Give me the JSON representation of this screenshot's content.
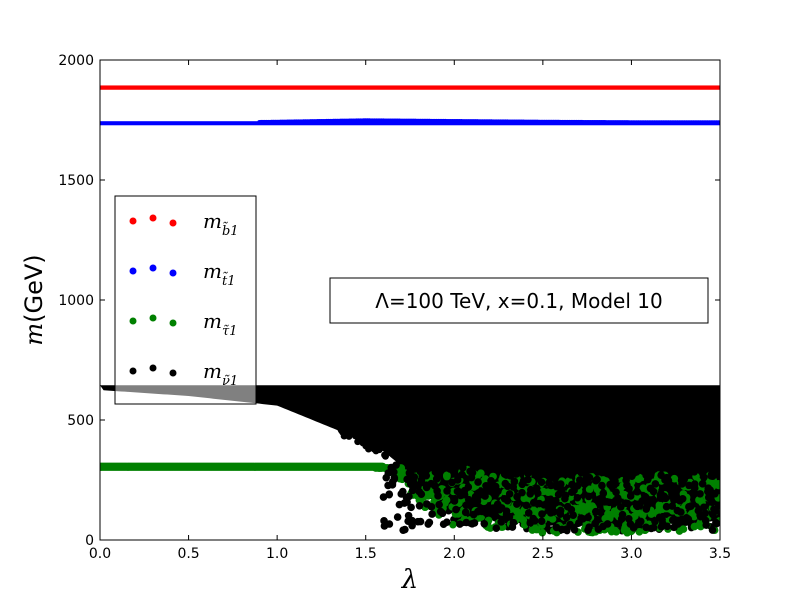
{
  "chart_data": {
    "type": "scatter",
    "title": "",
    "xlabel": "λ",
    "ylabel": "m(GeV)",
    "xlim": [
      0.0,
      3.5
    ],
    "ylim": [
      0,
      2000
    ],
    "x_ticks": [
      "0.0",
      "0.5",
      "1.0",
      "1.5",
      "2.0",
      "2.5",
      "3.0",
      "3.5"
    ],
    "y_ticks": [
      "0",
      "500",
      "1000",
      "1500",
      "2000"
    ],
    "grid": false,
    "legend_position": "upper-left",
    "annotation": "Λ=100 TeV, x=0.1, Model 10",
    "series": [
      {
        "name": "m_b̃1",
        "color": "#ff0000",
        "x": [
          0.0,
          0.5,
          1.0,
          1.5,
          2.0,
          2.5,
          3.0,
          3.5
        ],
        "y": [
          1885,
          1885,
          1885,
          1885,
          1885,
          1885,
          1885,
          1885
        ]
      },
      {
        "name": "m_t̃1",
        "color": "#0000ff",
        "x": [
          0.0,
          0.5,
          1.0,
          1.5,
          2.0,
          2.5,
          3.0,
          3.5
        ],
        "y": [
          1735,
          1737,
          1742,
          1748,
          1745,
          1742,
          1740,
          1740
        ]
      },
      {
        "name": "m_τ̃1",
        "color": "#008000",
        "x": [
          0.0,
          0.5,
          1.0,
          1.5,
          1.6,
          1.7,
          1.8,
          2.0,
          2.5,
          3.0,
          3.5
        ],
        "y": [
          305,
          305,
          305,
          305,
          300,
          250,
          150,
          60,
          30,
          30,
          40
        ]
      },
      {
        "name": "m_ν̃1",
        "color": "#000000",
        "x": [
          0.0,
          0.5,
          1.0,
          1.2,
          1.4,
          1.6,
          1.8,
          2.0,
          2.5,
          3.0,
          3.5
        ],
        "y": [
          625,
          600,
          560,
          500,
          440,
          370,
          250,
          100,
          60,
          60,
          80
        ]
      }
    ]
  },
  "legend": {
    "sbottom": "m",
    "sbottom_sub": "b̃1",
    "stop": "m",
    "stop_sub": "t̃1",
    "stau": "m",
    "stau_sub": "τ̃1",
    "sneutrino": "m",
    "sneutrino_sub": "ν̃1"
  }
}
